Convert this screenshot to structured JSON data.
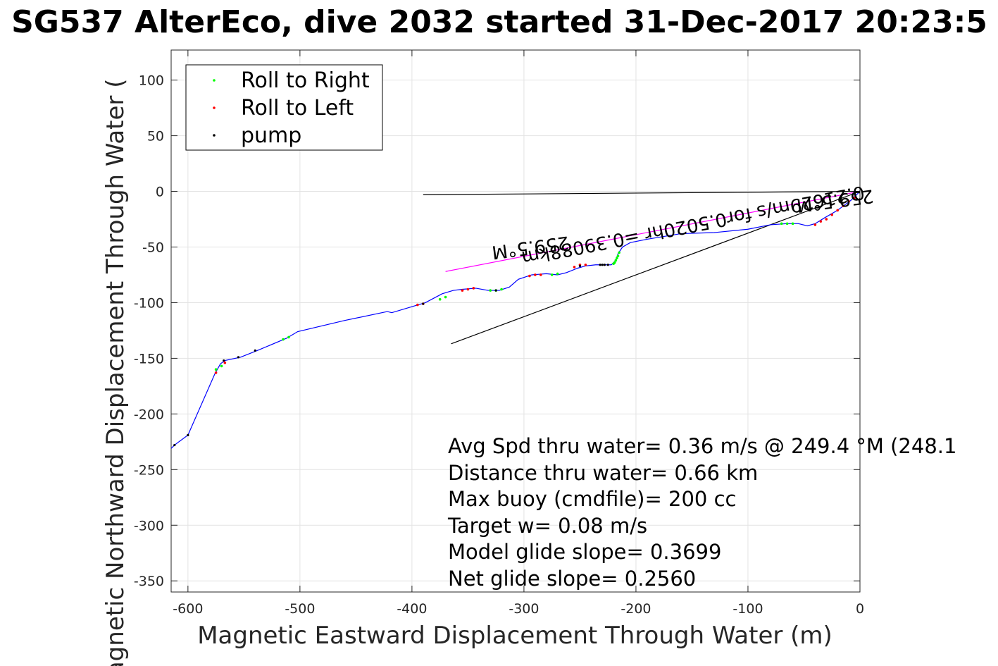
{
  "chart_data": {
    "type": "line",
    "title": "SG537 AlterEco, dive 2032 started 31-Dec-2017 20:23:5",
    "xlabel": "Magnetic Eastward Displacement Through Water (m)",
    "ylabel": "Magnetic Northward Displacement Through Water (",
    "xlim": [
      -615,
      0
    ],
    "ylim": [
      -360,
      127
    ],
    "xticks": [
      -600,
      -500,
      -400,
      -300,
      -200,
      -100,
      0
    ],
    "yticks": [
      100,
      50,
      0,
      -50,
      -100,
      -150,
      -200,
      -250,
      -300,
      -350
    ],
    "xtick_labels": [
      "-600",
      "-500",
      "-400",
      "-300",
      "-200",
      "-100",
      "0"
    ],
    "ytick_labels": [
      "100",
      "50",
      "0",
      "-50",
      "-100",
      "-150",
      "-200",
      "-250",
      "-300",
      "-350"
    ],
    "grid": true,
    "legend_position": "top-left",
    "legend": [
      {
        "label": "Roll to Right",
        "color": "#00ff00"
      },
      {
        "label": "Roll to Left",
        "color": "#ff0000"
      },
      {
        "label": "pump",
        "color": "#000000"
      }
    ],
    "track": {
      "color": "#0000ff",
      "x": [
        0,
        -8,
        -20,
        -32,
        -40,
        -47,
        -55,
        -65,
        -80,
        -100,
        -130,
        -160,
        -190,
        -205,
        -212,
        -216,
        -218,
        -222,
        -228,
        -236,
        -245,
        -252,
        -262,
        -270,
        -280,
        -293,
        -305,
        -313,
        -322,
        -332,
        -343,
        -355,
        -363,
        -373,
        -388,
        -418,
        -422,
        -460,
        -502,
        -512,
        -538,
        -553,
        -567,
        -571,
        -576,
        -600,
        -612,
        -615
      ],
      "y": [
        0,
        -8,
        -17,
        -24,
        -29,
        -31,
        -29,
        -29,
        -30,
        -34,
        -37,
        -38,
        -43,
        -46,
        -50,
        -56,
        -62,
        -66,
        -66,
        -66,
        -67,
        -69,
        -73,
        -75,
        -74,
        -75,
        -79,
        -86,
        -89,
        -89,
        -87,
        -88,
        -89,
        -92,
        -100,
        -109,
        -108,
        -116,
        -126,
        -132,
        -143,
        -149,
        -152,
        -155,
        -164,
        -219,
        -228,
        -231
      ]
    },
    "roll_right": {
      "color": "#00ff00",
      "x": [
        -215,
        -216,
        -217,
        -218,
        -219,
        -220,
        -70,
        -65,
        -60,
        -275,
        -270,
        -320,
        -325,
        -330,
        -375,
        -370,
        -510,
        -515,
        -570,
        -575
      ],
      "y": [
        -55,
        -58,
        -60,
        -62,
        -64,
        -65,
        -29,
        -29,
        -29,
        -75,
        -74,
        -88,
        -89,
        -89,
        -97,
        -95,
        -131,
        -133,
        -157,
        -160
      ]
    },
    "roll_left": {
      "color": "#ff0000",
      "x": [
        -5,
        -10,
        -15,
        -20,
        -25,
        -30,
        -35,
        -40,
        -255,
        -250,
        -245,
        -295,
        -290,
        -285,
        -345,
        -350,
        -355,
        -390,
        -395,
        -567,
        -575
      ],
      "y": [
        -6,
        -9,
        -13,
        -17,
        -21,
        -25,
        -27,
        -30,
        -68,
        -66,
        -66,
        -76,
        -75,
        -75,
        -87,
        -88,
        -89,
        -101,
        -102,
        -154,
        -163
      ]
    },
    "pump": {
      "color": "#000000",
      "x": [
        -225,
        -228,
        -230,
        -232,
        -555,
        -540,
        -568,
        -600,
        -612,
        -390,
        -325,
        -250,
        -0.5
      ],
      "y": [
        -66,
        -66,
        -66,
        -66,
        -149,
        -143,
        -152,
        -219,
        -228,
        -101,
        -89,
        -67,
        -0.5
      ]
    },
    "reference_lines": [
      {
        "x": [
          0,
          -390
        ],
        "y": [
          0,
          -3
        ],
        "color": "#000000"
      },
      {
        "x": [
          0,
          -365
        ],
        "y": [
          0,
          -137
        ],
        "color": "#000000"
      },
      {
        "x": [
          0,
          -370
        ],
        "y": [
          0,
          -72
        ],
        "color": "#ff00ff"
      }
    ],
    "rotated_labels": [
      {
        "text": "259.5°M",
        "x": -23,
        "y": -3,
        "angle_deg": 172.5
      },
      {
        "text": "0.21629m/s for0.5020hr =0.39088km",
        "x": -150,
        "y": -25,
        "angle_deg": 169
      },
      {
        "text": "259.5°M",
        "x": -295,
        "y": -45,
        "angle_deg": 172.5
      }
    ],
    "annotations": [
      "Avg Spd thru water=  0.36 m/s @ 249.4 °M (248.1",
      "Distance thru water=  0.66 km",
      "Max buoy (cmdfile)= 200 cc",
      "Target w= 0.08 m/s",
      "Model glide slope= 0.3699",
      "Net glide slope= 0.2560"
    ]
  }
}
